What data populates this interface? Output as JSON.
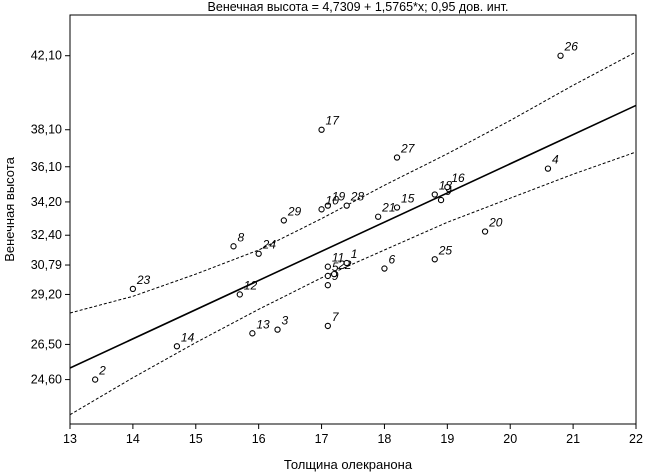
{
  "chart_data": {
    "type": "scatter",
    "title": "Венечная высота = 4,7309 + 1,5765*x; 0,95 дов. инт.",
    "xlabel": "Толщина олекранона",
    "ylabel": "Венечная высота",
    "xlim": [
      13,
      22
    ],
    "ylim": [
      22.2,
      44.3
    ],
    "x_ticks": [
      13,
      14,
      15,
      16,
      17,
      18,
      19,
      20,
      21,
      22
    ],
    "x_tick_labels": [
      "13",
      "14",
      "15",
      "16",
      "17",
      "18",
      "19",
      "20",
      "21",
      "22"
    ],
    "y_ticks": [
      24.6,
      26.5,
      29.2,
      30.79,
      32.4,
      34.2,
      36.1,
      38.1,
      42.1
    ],
    "y_tick_labels": [
      "24,60",
      "26,50",
      "29,20",
      "30,79",
      "32,40",
      "34,20",
      "36,10",
      "38,10",
      "42,10"
    ],
    "regression": {
      "intercept": 4.7309,
      "slope": 1.5765
    },
    "confidence": "0,95",
    "ci_upper": [
      {
        "x": 13,
        "y": 28.2
      },
      {
        "x": 14,
        "y": 29.1
      },
      {
        "x": 15,
        "y": 30.3
      },
      {
        "x": 16,
        "y": 31.6
      },
      {
        "x": 17,
        "y": 33.3
      },
      {
        "x": 18,
        "y": 35.1
      },
      {
        "x": 19,
        "y": 36.8
      },
      {
        "x": 20,
        "y": 38.6
      },
      {
        "x": 21,
        "y": 40.5
      },
      {
        "x": 22,
        "y": 42.3
      }
    ],
    "ci_lower": [
      {
        "x": 13,
        "y": 22.7
      },
      {
        "x": 14,
        "y": 24.7
      },
      {
        "x": 15,
        "y": 26.6
      },
      {
        "x": 16,
        "y": 28.4
      },
      {
        "x": 17,
        "y": 30.1
      },
      {
        "x": 18,
        "y": 31.6
      },
      {
        "x": 19,
        "y": 33.1
      },
      {
        "x": 20,
        "y": 34.4
      },
      {
        "x": 21,
        "y": 35.7
      },
      {
        "x": 22,
        "y": 36.9
      }
    ],
    "points": [
      {
        "label": "2",
        "x": 13.4,
        "y": 24.6
      },
      {
        "label": "23",
        "x": 14.0,
        "y": 29.5
      },
      {
        "label": "14",
        "x": 14.7,
        "y": 26.4
      },
      {
        "label": "12",
        "x": 15.7,
        "y": 29.2
      },
      {
        "label": "13",
        "x": 15.9,
        "y": 27.1
      },
      {
        "label": "8",
        "x": 15.6,
        "y": 31.8
      },
      {
        "label": "24",
        "x": 16.0,
        "y": 31.4
      },
      {
        "label": "3",
        "x": 16.3,
        "y": 27.3
      },
      {
        "label": "29",
        "x": 16.4,
        "y": 33.2
      },
      {
        "label": "7",
        "x": 17.1,
        "y": 27.5
      },
      {
        "label": "17",
        "x": 17.0,
        "y": 38.1
      },
      {
        "label": "19",
        "x": 17.1,
        "y": 34.0
      },
      {
        "label": "10",
        "x": 17.0,
        "y": 33.8
      },
      {
        "label": "11",
        "x": 17.1,
        "y": 30.7
      },
      {
        "label": "5",
        "x": 17.1,
        "y": 30.2
      },
      {
        "label": "9",
        "x": 17.1,
        "y": 29.7
      },
      {
        "label": "22",
        "x": 17.2,
        "y": 30.3
      },
      {
        "label": "1",
        "x": 17.4,
        "y": 30.9
      },
      {
        "label": "28",
        "x": 17.4,
        "y": 34.0
      },
      {
        "label": "21",
        "x": 17.9,
        "y": 33.4
      },
      {
        "label": "6",
        "x": 18.0,
        "y": 30.6
      },
      {
        "label": "15",
        "x": 18.2,
        "y": 33.9
      },
      {
        "label": "27",
        "x": 18.2,
        "y": 36.6
      },
      {
        "label": "25",
        "x": 18.8,
        "y": 31.1
      },
      {
        "label": "18",
        "x": 18.8,
        "y": 34.6
      },
      {
        "label": "9",
        "x": 18.9,
        "y": 34.3
      },
      {
        "label": "16",
        "x": 19.0,
        "y": 35.0
      },
      {
        "label": "20",
        "x": 19.6,
        "y": 32.6
      },
      {
        "label": "4",
        "x": 20.6,
        "y": 36.0
      },
      {
        "label": "26",
        "x": 20.8,
        "y": 42.1
      }
    ],
    "label_offsets": {}
  }
}
